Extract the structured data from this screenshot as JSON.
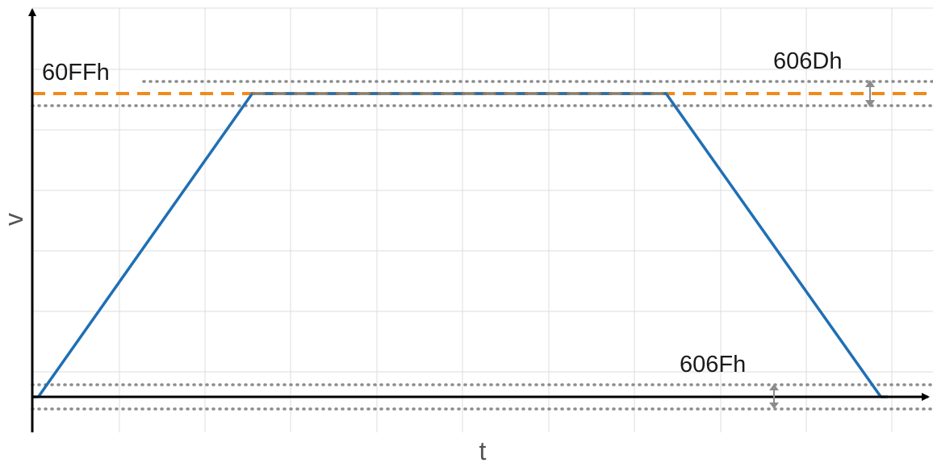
{
  "labels": {
    "target_velocity": "60FFh",
    "velocity_window": "606Dh",
    "velocity_threshold": "606Fh",
    "x_axis": "t",
    "y_axis": "v"
  },
  "colors": {
    "grid": "#dcdcdc",
    "axis": "#000000",
    "profile": "#1f6fb4",
    "target": "#f08a1c",
    "window": "#8c8c8c"
  },
  "chart_data": {
    "type": "line",
    "xlabel": "t",
    "ylabel": "v",
    "grid": true,
    "series": [
      {
        "values_t": [
          0.0,
          0.07,
          2.54,
          7.32,
          9.8,
          9.88
        ],
        "values_v": [
          0.0,
          0.0,
          1.0,
          1.0,
          0.0,
          0.0
        ]
      }
    ],
    "reference_lines": [
      {
        "label": "60FFh",
        "v": 1.0,
        "style": "dashed"
      },
      {
        "label": "606Dh",
        "v_upper": 1.04,
        "v_lower": 0.96,
        "style": "dotted"
      },
      {
        "label": "606Fh",
        "v_upper": 0.04,
        "v_lower": -0.04,
        "style": "dotted"
      }
    ]
  }
}
